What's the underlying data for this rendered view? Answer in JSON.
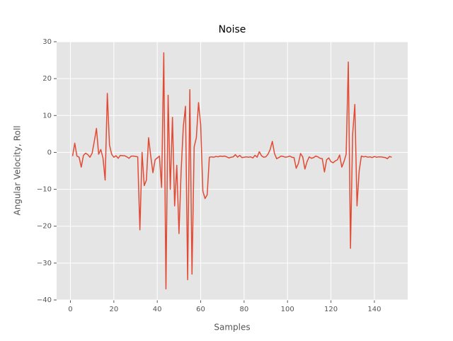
{
  "chart_data": {
    "type": "line",
    "title": "Noise",
    "x_label": "Samples",
    "y_label": "Angular Velocity, Roll",
    "x": [
      1,
      2,
      3,
      4,
      5,
      6,
      7,
      8,
      9,
      10,
      11,
      12,
      13,
      14,
      15,
      16,
      17,
      18,
      19,
      20,
      21,
      22,
      23,
      24,
      25,
      26,
      27,
      28,
      29,
      30,
      31,
      32,
      33,
      34,
      35,
      36,
      37,
      38,
      39,
      40,
      41,
      42,
      43,
      44,
      45,
      46,
      47,
      48,
      49,
      50,
      51,
      52,
      53,
      54,
      55,
      56,
      57,
      58,
      59,
      60,
      61,
      62,
      63,
      64,
      65,
      66,
      67,
      68,
      69,
      70,
      71,
      72,
      73,
      74,
      75,
      76,
      77,
      78,
      79,
      80,
      81,
      82,
      83,
      84,
      85,
      86,
      87,
      88,
      89,
      90,
      91,
      92,
      93,
      94,
      95,
      96,
      97,
      98,
      99,
      100,
      101,
      102,
      103,
      104,
      105,
      106,
      107,
      108,
      109,
      110,
      111,
      112,
      113,
      114,
      115,
      116,
      117,
      118,
      119,
      120,
      121,
      122,
      123,
      124,
      125,
      126,
      127,
      128,
      129,
      130,
      131,
      132,
      133,
      134,
      135,
      136,
      137,
      138,
      139,
      140,
      141,
      142,
      143,
      144,
      145,
      146,
      147,
      148
    ],
    "series": [
      {
        "color": "#e24a33",
        "values": [
          -1,
          2.5,
          -1,
          -1.3,
          -4,
          -0.8,
          -0.2,
          -0.6,
          -1.3,
          -0.2,
          3,
          6.5,
          -0.5,
          0.8,
          -1.5,
          -7.5,
          16,
          2,
          -0.5,
          -1.3,
          -0.9,
          -1.6,
          -0.8,
          -0.9,
          -0.9,
          -1.2,
          -1.6,
          -1,
          -1,
          -1.1,
          -1.2,
          -21,
          0,
          -9,
          -7.5,
          4,
          -1,
          -5.5,
          -2,
          -1.5,
          -1,
          -9.5,
          27,
          -37,
          15.5,
          -10,
          9.5,
          -14.5,
          -3.5,
          -22,
          -5,
          7,
          12.5,
          -34.5,
          17,
          -33,
          1.5,
          4,
          13.5,
          7.5,
          -10.5,
          -12.5,
          -11.5,
          -1.3,
          -1.2,
          -1.3,
          -1.1,
          -1.2,
          -1,
          -1.1,
          -1,
          -1.2,
          -1.5,
          -1.3,
          -1.2,
          -0.6,
          -1.3,
          -0.8,
          -1.4,
          -1.3,
          -1.2,
          -1.3,
          -1.2,
          -1.5,
          -0.8,
          -1.3,
          0.2,
          -0.9,
          -1.3,
          -1.2,
          -0.5,
          0.8,
          3,
          -0.3,
          -1.7,
          -1.4,
          -1,
          -1.1,
          -1.3,
          -1.2,
          -1,
          -1.3,
          -1.4,
          -4.3,
          -3,
          -0.3,
          -1.2,
          -4.5,
          -2.5,
          -1.2,
          -1.6,
          -1.4,
          -1,
          -1.2,
          -1.6,
          -1.7,
          -5.3,
          -2,
          -1.5,
          -2.5,
          -2.8,
          -2.3,
          -2,
          -0.7,
          -4,
          -2.5,
          -0.5,
          24.5,
          -26,
          5,
          13,
          -14.5,
          -5,
          -1,
          -1.2,
          -1.1,
          -1.3,
          -1.2,
          -1.4,
          -1.1,
          -1.3,
          -1.2,
          -1.2,
          -1.3,
          -1.4,
          -1.7,
          -1.1,
          -1.3
        ]
      }
    ],
    "xlim": [
      -6.35,
      155.35
    ],
    "ylim": [
      -40,
      30
    ],
    "xticks": [
      0,
      20,
      40,
      60,
      80,
      100,
      120,
      140
    ],
    "yticks": [
      {
        "value": -40,
        "label": "−40"
      },
      {
        "value": -30,
        "label": "−30"
      },
      {
        "value": -20,
        "label": "−20"
      },
      {
        "value": -10,
        "label": "−10"
      },
      0,
      10,
      20,
      30
    ],
    "grid": true
  }
}
